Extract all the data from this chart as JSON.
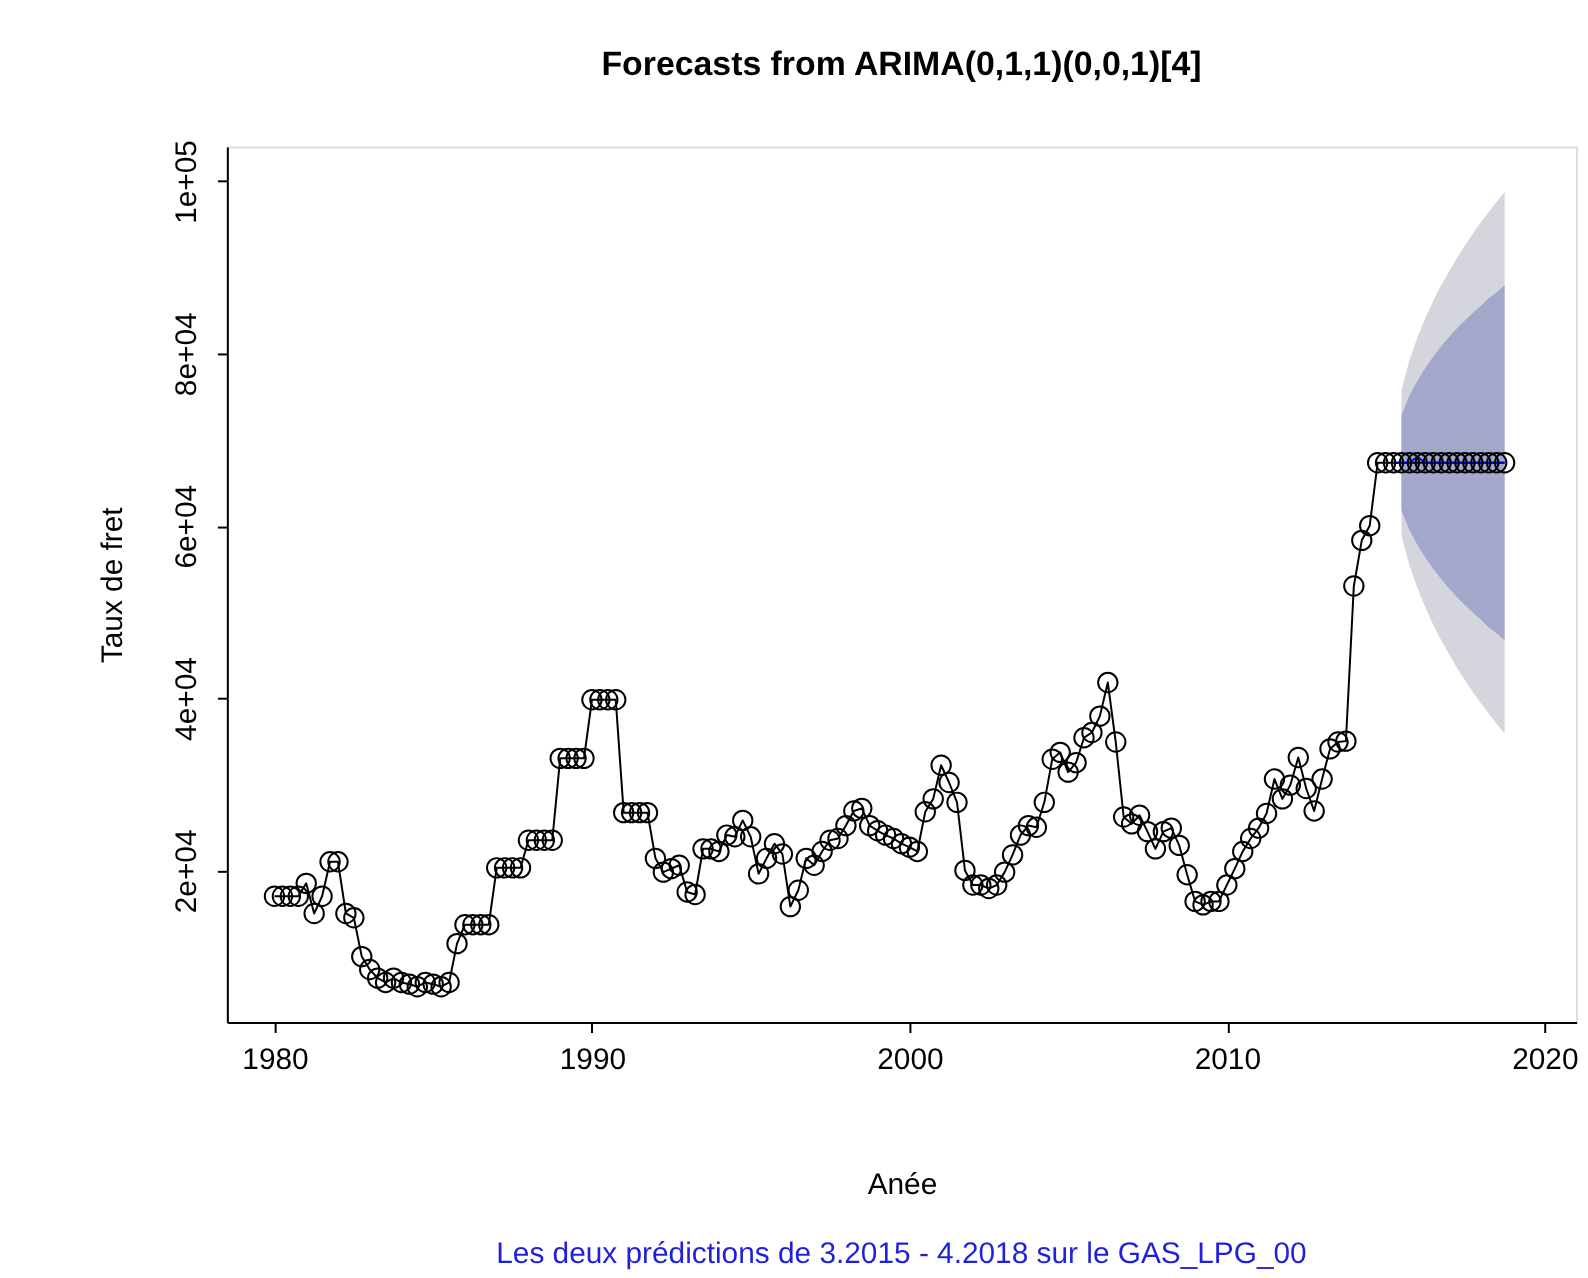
{
  "chart_data": {
    "type": "line",
    "title": "Forecasts from ARIMA(0,1,1)(0,0,1)[4]",
    "xlabel": "Anée",
    "ylabel": "Taux de fret",
    "annotations": [
      "Les deux prédictions de 3.2015 - 4.2018 sur le  GAS_LPG_00"
    ],
    "xlim": [
      1978.5,
      2021
    ],
    "xticks": [
      1980,
      1990,
      2000,
      2010,
      2020
    ],
    "ylim": [
      2400,
      104000
    ],
    "yticks": [
      {
        "value": 20000,
        "label": "2e+04"
      },
      {
        "value": 40000,
        "label": "4e+04"
      },
      {
        "value": 60000,
        "label": "6e+04"
      },
      {
        "value": 80000,
        "label": "8e+04"
      },
      {
        "value": 100000,
        "label": "1e+05"
      }
    ],
    "grid": false,
    "marker": "circle",
    "line_style": "solid",
    "series": [
      {
        "color": "#d5d5dd",
        "marker": "none",
        "x": [
          2015.5,
          2015.75,
          2016,
          2016.25,
          2016.5,
          2016.75,
          2017,
          2017.25,
          2017.5,
          2017.75,
          2018,
          2018.25,
          2018.5,
          2018.75
        ],
        "values": [
          null,
          null,
          null,
          null,
          null,
          null,
          null,
          null,
          null,
          null,
          null,
          null,
          null,
          null
        ],
        "lower": [
          58900,
          55400,
          52800,
          50500,
          48500,
          46700,
          45100,
          43500,
          42100,
          40700,
          39400,
          38200,
          37000,
          35900
        ],
        "upper": [
          75700,
          79200,
          81800,
          84100,
          86100,
          87900,
          89500,
          91100,
          92500,
          93900,
          95200,
          96400,
          97600,
          98700
        ]
      },
      {
        "color": "#a3a7cc",
        "marker": "none",
        "x": [
          2015.5,
          2015.75,
          2016,
          2016.25,
          2016.5,
          2016.75,
          2017,
          2017.25,
          2017.5,
          2017.75,
          2018,
          2018.25,
          2018.5,
          2018.75
        ],
        "values": [
          null,
          null,
          null,
          null,
          null,
          null,
          null,
          null,
          null,
          null,
          null,
          null,
          null,
          null
        ],
        "lower": [
          61800,
          59500,
          57800,
          56300,
          55000,
          53800,
          52700,
          51700,
          50800,
          49900,
          49100,
          48200,
          47500,
          46700
        ],
        "upper": [
          72800,
          75100,
          76800,
          78300,
          79600,
          80800,
          81900,
          82900,
          83800,
          84700,
          85500,
          86400,
          87100,
          87900
        ]
      },
      {
        "color": "#000000",
        "x": [
          1980,
          1980.25,
          1980.5,
          1980.75,
          1981,
          1981.25,
          1981.5,
          1981.75,
          1982,
          1982.25,
          1982.5,
          1982.75,
          1983,
          1983.25,
          1983.5,
          1983.75,
          1984,
          1984.25,
          1984.5,
          1984.75,
          1985,
          1985.25,
          1985.5,
          1985.75,
          1986,
          1986.25,
          1986.5,
          1986.75,
          1987,
          1987.25,
          1987.5,
          1987.75,
          1988,
          1988.25,
          1988.5,
          1988.75,
          1989,
          1989.25,
          1989.5,
          1989.75,
          1990,
          1990.25,
          1990.5,
          1990.75,
          1991,
          1991.25,
          1991.5,
          1991.75,
          1992,
          1992.25,
          1992.5,
          1992.75,
          1993,
          1993.25,
          1993.5,
          1993.75,
          1994,
          1994.25,
          1994.5,
          1994.75,
          1995,
          1995.25,
          1995.5,
          1995.75,
          1996,
          1996.25,
          1996.5,
          1996.75,
          1997,
          1997.25,
          1997.5,
          1997.75,
          1998,
          1998.25,
          1998.5,
          1998.75,
          1999,
          1999.25,
          1999.5,
          1999.75,
          2000,
          2000.25,
          2000.5,
          2000.75,
          2001,
          2001.25,
          2001.5,
          2001.75,
          2002,
          2002.25,
          2002.5,
          2002.75,
          2003,
          2003.25,
          2003.5,
          2003.75,
          2004,
          2004.25,
          2004.5,
          2004.75,
          2005,
          2005.25,
          2005.5,
          2005.75,
          2006,
          2006.25,
          2006.5,
          2006.75,
          2007,
          2007.25,
          2007.5,
          2007.75,
          2008,
          2008.25,
          2008.5,
          2008.75,
          2009,
          2009.25,
          2009.5,
          2009.75,
          2010,
          2010.25,
          2010.5,
          2010.75,
          2011,
          2011.25,
          2011.5,
          2011.75,
          2012,
          2012.25,
          2012.5,
          2012.75,
          2013,
          2013.25,
          2013.5,
          2013.75,
          2014,
          2014.25,
          2014.5,
          2014.75,
          2015,
          2015.25,
          2015.5,
          2015.75,
          2016,
          2016.25,
          2016.5,
          2016.75,
          2017,
          2017.25,
          2017.5,
          2017.75,
          2018,
          2018.25,
          2018.5,
          2018.75
        ],
        "values": [
          17000,
          17000,
          17000,
          17000,
          18500,
          15000,
          17000,
          21000,
          21000,
          15000,
          14500,
          10000,
          8500,
          7500,
          7000,
          7500,
          7000,
          6800,
          6500,
          7000,
          6800,
          6500,
          7000,
          11500,
          13700,
          13700,
          13700,
          13700,
          20300,
          20300,
          20300,
          20300,
          23500,
          23500,
          23500,
          23500,
          33000,
          33000,
          33000,
          33000,
          39800,
          39800,
          39800,
          39800,
          26700,
          26700,
          26700,
          26700,
          21400,
          19800,
          20200,
          20600,
          17500,
          17200,
          22500,
          22500,
          22200,
          24100,
          23900,
          25800,
          23900,
          19600,
          21400,
          23100,
          21900,
          15800,
          17700,
          21400,
          20600,
          22200,
          23500,
          23700,
          25200,
          26900,
          27200,
          25200,
          24600,
          24100,
          23700,
          23100,
          22700,
          22200,
          26800,
          28300,
          32200,
          30200,
          27900,
          20000,
          18300,
          18300,
          17900,
          18300,
          19800,
          21800,
          24100,
          25200,
          25000,
          27900,
          32900,
          33700,
          31400,
          32500,
          35400,
          36000,
          37900,
          41800,
          34900,
          26200,
          25400,
          26400,
          24500,
          22500,
          24500,
          24900,
          22900,
          19500,
          16400,
          16000,
          16400,
          16400,
          18300,
          20200,
          22200,
          23700,
          24900,
          26600,
          30600,
          28300,
          29900,
          33100,
          29500,
          26900,
          30600,
          34100,
          34900,
          35000,
          53000,
          58300,
          60000,
          67300,
          67300,
          67300,
          67300,
          67300,
          67300,
          67300,
          67300,
          67300,
          67300,
          67300,
          67300,
          67300,
          67300,
          67300,
          67300,
          67300
        ]
      },
      {
        "marker": "none",
        "color": "#0000ff",
        "x": [
          2015.25,
          2015.5,
          2015.75,
          2016,
          2016.25,
          2016.5,
          2016.75,
          2017,
          2017.25,
          2017.5,
          2017.75,
          2018,
          2018.25,
          2018.5,
          2018.75
        ],
        "values": [
          67300,
          67300,
          67300,
          68000,
          67300,
          67300,
          67300,
          67300,
          67300,
          67300,
          67300,
          67300,
          67300,
          67300,
          67300
        ]
      }
    ]
  }
}
